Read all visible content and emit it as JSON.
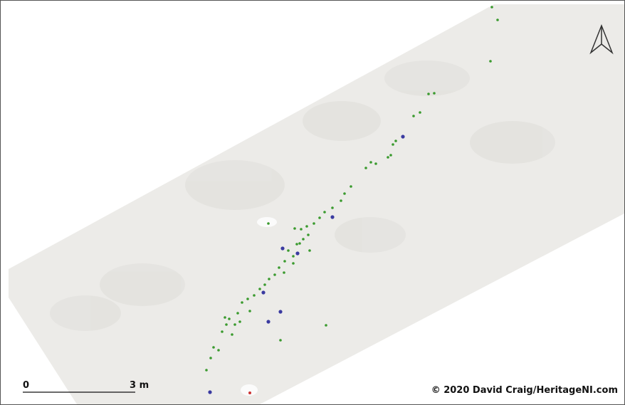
{
  "scale_bar": {
    "start_label": "0",
    "end_label": "3 m"
  },
  "attribution": "© 2020 David Craig/HeritageNI.com"
}
